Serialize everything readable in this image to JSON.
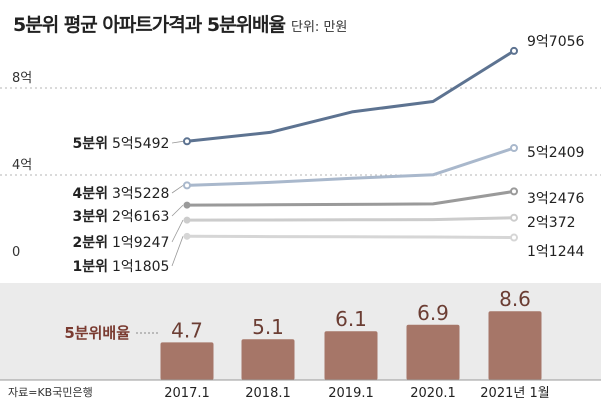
{
  "header": {
    "title": "5분위 평균 아파트가격과 5분위배율",
    "unit": "단위: 만원"
  },
  "source": "자료=KB국민은행",
  "chart_data": [
    {
      "type": "line",
      "y_ticks": [
        "8억",
        "4억",
        "0"
      ],
      "y_tick_values": [
        80000,
        40000,
        0
      ],
      "ylim": [
        0,
        100000
      ],
      "x": [
        "2017.1",
        "2018.1",
        "2019.1",
        "2020.1",
        "2021년 1월"
      ],
      "series": [
        {
          "name": "5분위",
          "start_label": "5억5492",
          "end_label": "9억7056",
          "color": "#5d7391",
          "values": [
            55492,
            59600,
            69000,
            73800,
            97056
          ]
        },
        {
          "name": "4분위",
          "start_label": "3억5228",
          "end_label": "5억2409",
          "color": "#a9b8cc",
          "values": [
            35228,
            36600,
            38500,
            40100,
            52409
          ]
        },
        {
          "name": "3분위",
          "start_label": "2억6163",
          "end_label": "3억2476",
          "color": "#9a9a9a",
          "values": [
            26163,
            26300,
            26500,
            26700,
            32476
          ]
        },
        {
          "name": "2분위",
          "start_label": "1억9247",
          "end_label": "2억372",
          "color": "#cccccc",
          "values": [
            19247,
            19300,
            19400,
            19500,
            20372
          ]
        },
        {
          "name": "1분위",
          "start_label": "1억1805",
          "end_label": "1억1244",
          "color": "#d6d6d6",
          "values": [
            11805,
            11700,
            11600,
            11500,
            11244
          ]
        }
      ]
    },
    {
      "type": "bar",
      "label": "5분위배율",
      "categories": [
        "2017.1",
        "2018.1",
        "2019.1",
        "2020.1",
        "2021년 1월"
      ],
      "values": [
        4.7,
        5.1,
        6.1,
        6.9,
        8.6
      ],
      "value_labels": [
        "4.7",
        "5.1",
        "6.1",
        "6.9",
        "8.6"
      ],
      "bar_color": "#a67668",
      "ylim": [
        0,
        10
      ]
    }
  ]
}
